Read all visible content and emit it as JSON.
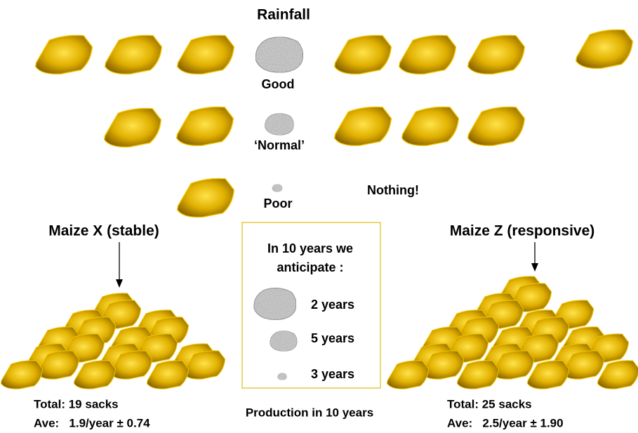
{
  "title": "Rainfall",
  "rainfall_levels": [
    "Good",
    "‘Normal’",
    "Poor"
  ],
  "poor_note": "Nothing!",
  "varieties": [
    {
      "name": "Maize X (stable)",
      "total": "Total: 19 sacks",
      "average": "Ave:   1.9/year ± 0.74"
    },
    {
      "name": "Maize Z (responsive)",
      "total": "Total: 25 sacks",
      "average": "Ave:   2.5/year ± 1.90"
    }
  ],
  "legend": {
    "heading": [
      "In 10 years we",
      "anticipate :"
    ],
    "items": [
      "2 years",
      "5 years",
      "3 years"
    ]
  },
  "footer": "Production in 10 years"
}
